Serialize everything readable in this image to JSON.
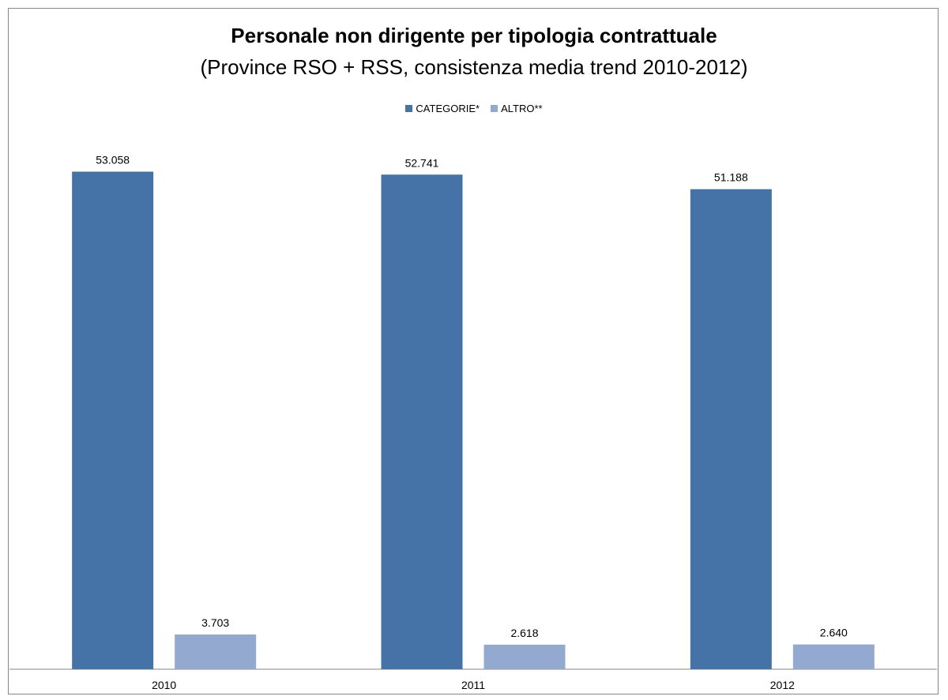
{
  "chart_data": {
    "type": "bar",
    "title": "Personale non dirigente per tipologia contrattuale",
    "subtitle": "(Province RSO + RSS, consistenza media trend 2010-2012)",
    "categories": [
      "2010",
      "2011",
      "2012"
    ],
    "series": [
      {
        "name": "CATEGORIE*",
        "color": "#4572a7",
        "values": [
          53058,
          52741,
          51188
        ],
        "labels": [
          "53.058",
          "52.741",
          "51.188"
        ]
      },
      {
        "name": "ALTRO**",
        "color": "#93a9cf",
        "values": [
          3703,
          2618,
          2640
        ],
        "labels": [
          "3.703",
          "2.618",
          "2.640"
        ]
      }
    ],
    "ylim": [
      0,
      60000
    ],
    "grid": false,
    "legend_position": "top-center",
    "xlabel": "",
    "ylabel": ""
  }
}
